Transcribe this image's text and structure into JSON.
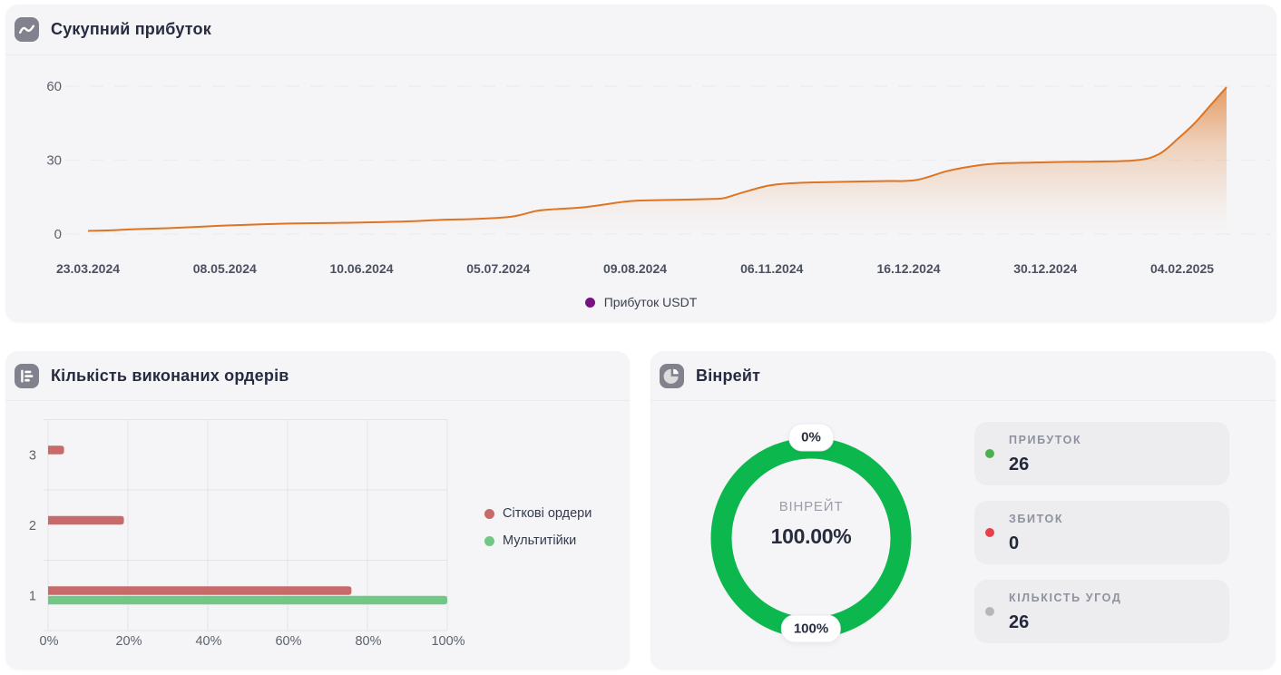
{
  "colors": {
    "page_bg": "#ffffff",
    "card_bg": "#f5f5f7",
    "divider": "#e9eaee",
    "icon_bg": "#82828e",
    "title_text": "#262b3f",
    "y_tick_text": "#5d616c",
    "x_tick_text": "#4b515f",
    "legend_text": "#3b4152",
    "profit_line": "#dd7524",
    "profit_legend_dot": "#771280",
    "grid_dashed": "#ececf0",
    "bar_grid": "#e3e4e8",
    "bar_red": "#c96a6a",
    "bar_green": "#72c787",
    "donut_green": "#0cb84e",
    "stat_dot_green": "#4caf50",
    "stat_dot_red": "#e8404b",
    "stat_dot_gray": "#b5b7bd"
  },
  "profit_card": {
    "title": "Сукупний прибуток",
    "legend_label": "Прибуток USDT"
  },
  "orders_card": {
    "title": "Кількість виконаних ордерів"
  },
  "winrate_card": {
    "title": "Вінрейт",
    "gauge": {
      "top_label": "0%",
      "bottom_label": "100%",
      "center_label": "ВІНРЕЙТ",
      "center_value": "100.00%",
      "percent": 100
    },
    "stats": [
      {
        "label": "ПРИБУТОК",
        "value": "26",
        "dot_color": "#4caf50"
      },
      {
        "label": "ЗБИТОК",
        "value": "0",
        "dot_color": "#e8404b"
      },
      {
        "label": "КІЛЬКІСТЬ УГОД",
        "value": "26",
        "dot_color": "#b5b7bd"
      }
    ]
  },
  "chart_data": [
    {
      "type": "area",
      "title": "Сукупний прибуток",
      "xlabel": "",
      "ylabel": "",
      "y_ticks": [
        0,
        30,
        60
      ],
      "ylim": [
        0,
        60
      ],
      "grid": "dashed-horizontal",
      "legend_position": "bottom",
      "x_tick_labels": [
        "23.03.2024",
        "08.05.2024",
        "10.06.2024",
        "05.07.2024",
        "09.08.2024",
        "06.11.2024",
        "16.12.2024",
        "30.12.2024",
        "04.02.2025"
      ],
      "series": [
        {
          "name": "Прибуток USDT",
          "color": "#dd7524",
          "points": [
            [
              0.0,
              1.3
            ],
            [
              0.02,
              1.5
            ],
            [
              0.041,
              2.0
            ],
            [
              0.07,
              2.4
            ],
            [
              0.095,
              2.9
            ],
            [
              0.122,
              3.5
            ],
            [
              0.149,
              3.9
            ],
            [
              0.168,
              4.2
            ],
            [
              0.176,
              4.3
            ],
            [
              0.198,
              4.4
            ],
            [
              0.23,
              4.6
            ],
            [
              0.26,
              4.9
            ],
            [
              0.284,
              5.2
            ],
            [
              0.312,
              5.8
            ],
            [
              0.339,
              6.1
            ],
            [
              0.369,
              6.9
            ],
            [
              0.381,
              7.9
            ],
            [
              0.394,
              9.4
            ],
            [
              0.41,
              10.1
            ],
            [
              0.434,
              10.8
            ],
            [
              0.454,
              12.0
            ],
            [
              0.467,
              12.9
            ],
            [
              0.485,
              13.6
            ],
            [
              0.515,
              13.9
            ],
            [
              0.545,
              14.2
            ],
            [
              0.556,
              14.4
            ],
            [
              0.562,
              15.0
            ],
            [
              0.576,
              17.0
            ],
            [
              0.597,
              19.6
            ],
            [
              0.617,
              20.6
            ],
            [
              0.64,
              21.0
            ],
            [
              0.697,
              21.5
            ],
            [
              0.727,
              21.9
            ],
            [
              0.755,
              25.6
            ],
            [
              0.778,
              27.6
            ],
            [
              0.798,
              28.6
            ],
            [
              0.828,
              29.0
            ],
            [
              0.86,
              29.3
            ],
            [
              0.917,
              29.8
            ],
            [
              0.94,
              32.3
            ],
            [
              0.958,
              39.0
            ],
            [
              0.972,
              45.0
            ],
            [
              0.986,
              52.3
            ],
            [
              1.0,
              59.6
            ]
          ]
        }
      ]
    },
    {
      "type": "bar",
      "orientation": "horizontal",
      "categories_top_to_bottom": [
        "3",
        "2",
        "1"
      ],
      "x_tick_labels": [
        "0%",
        "20%",
        "40%",
        "60%",
        "80%",
        "100%"
      ],
      "xlim": [
        0,
        100
      ],
      "series": [
        {
          "name": "Сіткові ордери",
          "color": "#c96a6a",
          "values_pct": [
            4,
            19,
            76
          ]
        },
        {
          "name": "Мультитійки",
          "color": "#72c787",
          "values_pct": [
            0,
            0,
            100
          ]
        }
      ]
    },
    {
      "type": "donut",
      "label": "ВІНРЕЙТ",
      "value_pct": 100.0,
      "display_value": "100.00%",
      "ring_color": "#0cb84e",
      "callout_top": "0%",
      "callout_bottom": "100%"
    }
  ]
}
